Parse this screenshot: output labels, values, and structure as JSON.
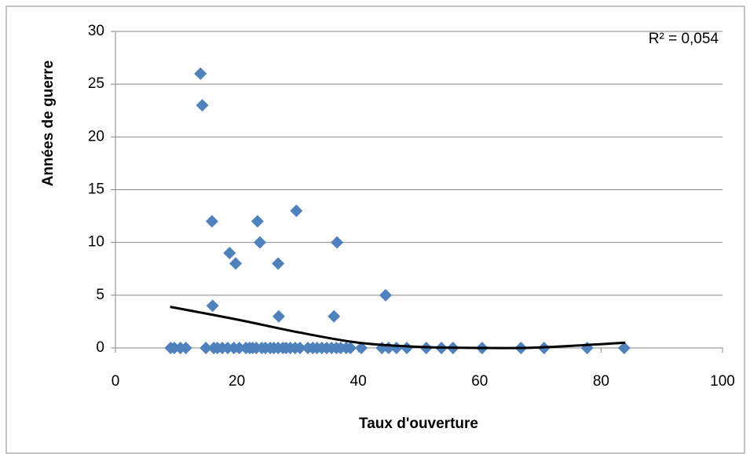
{
  "chart_data": {
    "type": "scatter",
    "x_label": "Taux d'ouverture",
    "y_label": "Années de guerre",
    "annotation": "R² = 0,054",
    "color": "#4f81bd",
    "grid": true,
    "x": [
      14,
      14.3,
      15.9,
      16,
      18.8,
      19.8,
      23.4,
      23.8,
      26.8,
      26.9,
      29.8,
      36,
      36.5,
      44.5,
      9.1,
      9.7,
      10.7,
      11.6,
      14.9,
      16.2,
      16.8,
      17.6,
      18.5,
      19.5,
      20.4,
      21.5,
      22.1,
      22.6,
      23.2,
      24.1,
      24.7,
      25.5,
      26.1,
      26.8,
      27.6,
      28.1,
      28.8,
      29.6,
      30.4,
      31.7,
      32.5,
      33.2,
      34.0,
      34.8,
      35.6,
      36.4,
      37.1,
      38.0,
      38.7,
      40.5,
      43.9,
      45.0,
      46.3,
      48.0,
      51.2,
      53.7,
      55.6,
      60.4,
      66.8,
      70.6,
      77.7,
      83.8
    ],
    "values": [
      26,
      23,
      12,
      4,
      9,
      8,
      12,
      10,
      8,
      3,
      13,
      3,
      10,
      5,
      0,
      0,
      0,
      0,
      0,
      0,
      0,
      0,
      0,
      0,
      0,
      0,
      0,
      0,
      0,
      0,
      0,
      0,
      0,
      0,
      0,
      0,
      0,
      0,
      0,
      0,
      0,
      0,
      0,
      0,
      0,
      0,
      0,
      0,
      0,
      0,
      0,
      0,
      0,
      0,
      0,
      0,
      0,
      0,
      0,
      0,
      0,
      0
    ],
    "trendline": {
      "color": "#000000",
      "x": [
        9,
        20,
        30,
        40,
        50,
        60,
        70,
        84
      ],
      "values": [
        3.9,
        2.7,
        1.5,
        0.5,
        0.1,
        0,
        0.05,
        0.5
      ]
    },
    "xlim": [
      0,
      100
    ],
    "xticks": [
      0,
      20,
      40,
      60,
      80,
      100
    ],
    "ylim": [
      0,
      30
    ],
    "yticks": [
      0,
      5,
      10,
      15,
      20,
      25,
      30
    ]
  }
}
